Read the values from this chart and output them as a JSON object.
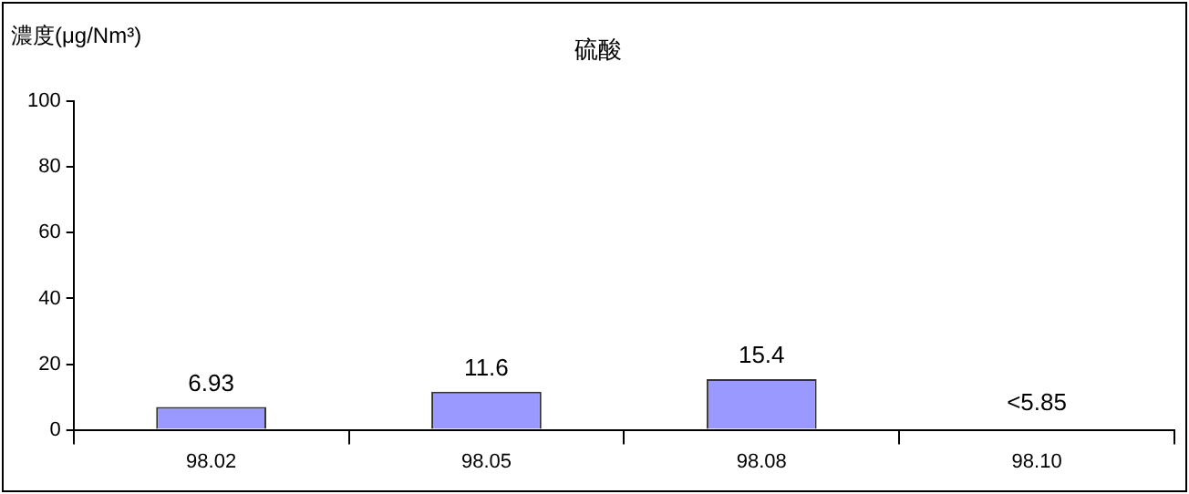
{
  "chart_data": {
    "type": "bar",
    "title": "硫酸",
    "ylabel": "濃度(μg/Nm³)",
    "categories": [
      "98.02",
      "98.05",
      "98.08",
      "98.10"
    ],
    "values": [
      6.93,
      11.6,
      15.4,
      null
    ],
    "value_labels": [
      "6.93",
      "11.6",
      "15.4",
      "<5.85"
    ],
    "color": "#9999ff",
    "ylim": [
      0,
      100
    ],
    "yticks": [
      0,
      20,
      40,
      60,
      80,
      100
    ],
    "grid": false,
    "legend": false
  }
}
